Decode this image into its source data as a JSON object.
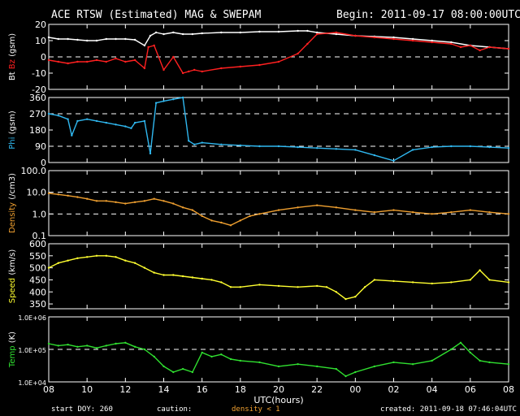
{
  "header": {
    "title": "ACE RTSW (Estimated) MAG & SWEPAM",
    "begin": "Begin: 2011-09-17 08:00:00UTC"
  },
  "footer": {
    "start_doy": "start DOY: 260",
    "caution": "caution:",
    "density_note": "density < 1",
    "created": "created: 2011-09-18 07:46:04UTC"
  },
  "colors": {
    "bt": "#ffffff",
    "bz": "#ff2020",
    "phi": "#30b8f0",
    "density": "#f0a030",
    "speed": "#ffff30",
    "temp": "#30e030",
    "axis": "#ffffff"
  },
  "chart_data": {
    "type": "line",
    "x_unit": "UTC hours since 2011-09-17 08:00",
    "x_ticks": [
      "08",
      "10",
      "12",
      "14",
      "16",
      "18",
      "20",
      "22",
      "00",
      "02",
      "04",
      "06",
      "08"
    ],
    "xlabel": "UTC(hours)",
    "panels": [
      {
        "id": "mag",
        "ylabel_parts": [
          {
            "text": "Bt",
            "color": "#ffffff"
          },
          {
            "text": " Bz",
            "color": "#ff2020"
          },
          {
            "text": " (gsm)",
            "color": "#ffffff"
          }
        ],
        "ylim": [
          -20,
          20
        ],
        "yticks": [
          -20,
          -10,
          0,
          10,
          20
        ],
        "ytick_labels": [
          "-20",
          "-10",
          "0",
          "10",
          "20"
        ],
        "scale": "linear",
        "dashed": [
          0
        ],
        "series": [
          {
            "color": "#ffffff",
            "x": [
              0,
              0.5,
              1,
              1.5,
              2,
              2.5,
              3,
              3.5,
              4,
              4.5,
              5,
              5.3,
              5.6,
              6,
              6.5,
              7,
              7.5,
              8,
              9,
              10,
              11,
              12,
              13,
              13.5,
              14,
              15,
              16,
              17,
              18,
              19,
              20,
              21,
              22,
              23,
              24
            ],
            "y": [
              12,
              11,
              11,
              10.5,
              10,
              10,
              11,
              11,
              11,
              10.5,
              7,
              13,
              15,
              14,
              15,
              14,
              14,
              14.5,
              15,
              15,
              15.5,
              15.5,
              16,
              16,
              15,
              14,
              13,
              12.5,
              12,
              11,
              10,
              9,
              7,
              6,
              5
            ]
          },
          {
            "color": "#ff2020",
            "x": [
              0,
              0.5,
              1,
              1.5,
              2,
              2.5,
              3,
              3.5,
              4,
              4.5,
              5,
              5.2,
              5.5,
              6,
              6.5,
              7,
              7.3,
              7.6,
              8,
              9,
              10,
              11,
              12,
              13,
              13.5,
              14,
              15,
              16,
              17,
              18,
              19,
              20,
              21,
              21.5,
              22,
              22.5,
              23,
              24
            ],
            "y": [
              -2,
              -3,
              -4,
              -3,
              -3,
              -2,
              -3,
              -1,
              -3,
              -2,
              -7,
              6,
              7,
              -8,
              0,
              -10,
              -9,
              -8,
              -9,
              -7,
              -6,
              -5,
              -3,
              2,
              8,
              14,
              15,
              13,
              12,
              11,
              10,
              9,
              8,
              6,
              7,
              4,
              6,
              5
            ]
          }
        ]
      },
      {
        "id": "phi",
        "ylabel_parts": [
          {
            "text": "Phi",
            "color": "#30b8f0"
          },
          {
            "text": " (gsm)",
            "color": "#ffffff"
          }
        ],
        "ylim": [
          0,
          360
        ],
        "yticks": [
          0,
          90,
          180,
          270,
          360
        ],
        "ytick_labels": [
          "0",
          "90",
          "180",
          "270",
          "360"
        ],
        "scale": "linear",
        "dashed": [
          90,
          270
        ],
        "series": [
          {
            "color": "#30b8f0",
            "x": [
              0,
              0.5,
              1,
              1.2,
              1.5,
              2,
              2.5,
              3,
              3.5,
              4,
              4.3,
              4.5,
              5,
              5.3,
              5.6,
              6,
              6.5,
              7,
              7.3,
              7.6,
              8,
              9,
              10,
              11,
              12,
              13,
              14,
              15,
              16,
              17,
              18,
              19,
              20,
              21,
              22,
              23,
              24
            ],
            "y": [
              270,
              260,
              240,
              150,
              230,
              240,
              230,
              220,
              210,
              200,
              190,
              220,
              230,
              50,
              330,
              340,
              350,
              360,
              120,
              100,
              110,
              100,
              95,
              90,
              90,
              85,
              80,
              75,
              70,
              40,
              10,
              70,
              85,
              90,
              90,
              85,
              80
            ]
          }
        ]
      },
      {
        "id": "density",
        "ylabel_parts": [
          {
            "text": "Density",
            "color": "#f0a030"
          },
          {
            "text": " (/cm3)",
            "color": "#ffffff"
          }
        ],
        "ylim": [
          0.1,
          100
        ],
        "yticks": [
          0.1,
          1,
          10,
          100
        ],
        "ytick_labels": [
          "0.1",
          "1.0",
          "10.0",
          "100.0"
        ],
        "scale": "log",
        "dashed": [
          1,
          10
        ],
        "series": [
          {
            "color": "#f0a030",
            "x": [
              0,
              0.5,
              1,
              1.5,
              2,
              2.5,
              3,
              3.5,
              4,
              4.5,
              5,
              5.5,
              6,
              6.5,
              7,
              7.5,
              8,
              8.5,
              9,
              9.5,
              10,
              10.5,
              11,
              12,
              13,
              14,
              15,
              16,
              17,
              18,
              19,
              20,
              21,
              22,
              23,
              24
            ],
            "y": [
              9,
              8,
              7,
              6,
              5,
              4,
              4,
              3.5,
              3,
              3.5,
              4,
              5,
              4,
              3,
              2,
              1.5,
              0.8,
              0.5,
              0.4,
              0.3,
              0.5,
              0.8,
              1,
              1.5,
              2,
              2.5,
              2,
              1.5,
              1.2,
              1.5,
              1.2,
              1,
              1.2,
              1.5,
              1.2,
              1.0
            ]
          }
        ]
      },
      {
        "id": "speed",
        "ylabel_parts": [
          {
            "text": "Speed",
            "color": "#ffff30"
          },
          {
            "text": " (km/s)",
            "color": "#ffffff"
          }
        ],
        "ylim": [
          330,
          600
        ],
        "yticks": [
          350,
          400,
          450,
          500,
          550,
          600
        ],
        "ytick_labels": [
          "350",
          "400",
          "450",
          "500",
          "550",
          "600"
        ],
        "scale": "linear",
        "dashed": [],
        "series": [
          {
            "color": "#ffff30",
            "x": [
              0,
              0.5,
              1,
              1.5,
              2,
              2.5,
              3,
              3.5,
              4,
              4.5,
              5,
              5.5,
              6,
              6.5,
              7,
              7.5,
              8,
              8.5,
              9,
              9.5,
              10,
              11,
              12,
              13,
              14,
              14.5,
              15,
              15.5,
              16,
              16.5,
              17,
              18,
              19,
              20,
              21,
              22,
              22.5,
              23,
              24
            ],
            "y": [
              500,
              520,
              530,
              540,
              545,
              550,
              550,
              545,
              530,
              520,
              500,
              480,
              470,
              470,
              465,
              460,
              455,
              450,
              440,
              420,
              420,
              430,
              425,
              420,
              425,
              420,
              400,
              370,
              380,
              420,
              450,
              445,
              440,
              435,
              440,
              450,
              490,
              450,
              440
            ]
          }
        ]
      },
      {
        "id": "temp",
        "ylabel_parts": [
          {
            "text": "Temp",
            "color": "#30e030"
          },
          {
            "text": " (K)",
            "color": "#ffffff"
          }
        ],
        "ylim": [
          10000,
          1000000
        ],
        "yticks": [
          10000,
          100000,
          1000000
        ],
        "ytick_labels": [
          "1.0E+04",
          "1.0E+05",
          "1.0E+06"
        ],
        "scale": "log",
        "dashed": [
          100000
        ],
        "series": [
          {
            "color": "#30e030",
            "x": [
              0,
              0.5,
              1,
              1.5,
              2,
              2.5,
              3,
              3.5,
              4,
              4.5,
              5,
              5.5,
              6,
              6.5,
              7,
              7.5,
              8,
              8.5,
              9,
              9.5,
              10,
              11,
              12,
              13,
              14,
              15,
              15.5,
              16,
              17,
              18,
              19,
              20,
              21,
              21.5,
              22,
              22.5,
              23,
              24
            ],
            "y": [
              150000,
              130000,
              140000,
              120000,
              130000,
              110000,
              130000,
              150000,
              160000,
              120000,
              100000,
              60000,
              30000,
              20000,
              25000,
              20000,
              80000,
              60000,
              70000,
              50000,
              45000,
              40000,
              30000,
              35000,
              30000,
              25000,
              15000,
              20000,
              30000,
              40000,
              35000,
              45000,
              100000,
              160000,
              80000,
              45000,
              40000,
              35000
            ]
          }
        ]
      }
    ]
  }
}
